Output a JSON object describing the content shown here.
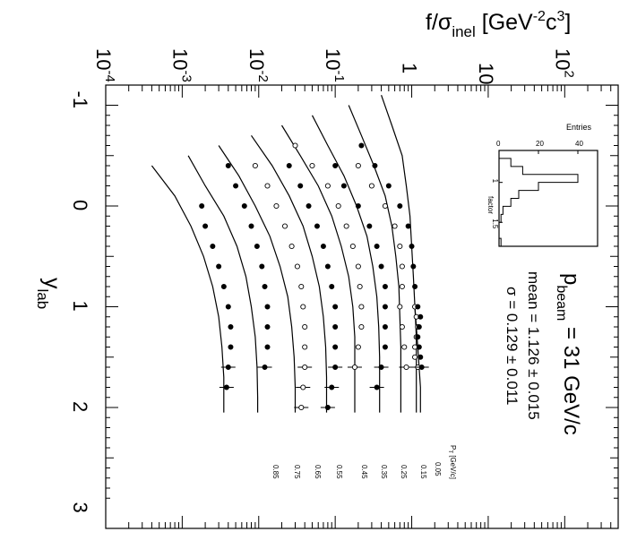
{
  "chart_data": {
    "type": "scatter",
    "title": "",
    "ylabel": "f/σ",
    "ylabel_sub": "inel",
    "ylabel_unit_pre": " [GeV",
    "ylabel_unit_sup1": "-2",
    "ylabel_unit_mid": "c",
    "ylabel_unit_sup2": "3",
    "ylabel_unit_post": "]",
    "xlabel": "y",
    "xlabel_sub": "lab",
    "xlim": [
      -1.2,
      3.2
    ],
    "ylim": [
      0.0001,
      500
    ],
    "yscale": "log",
    "x_ticks": [
      "-1",
      "0",
      "1",
      "2",
      "3"
    ],
    "y_ticks": [
      {
        "base": "10",
        "exp": "-4"
      },
      {
        "base": "10",
        "exp": "-3"
      },
      {
        "base": "10",
        "exp": "-2"
      },
      {
        "base": "10",
        "exp": "-1"
      },
      {
        "base": "1",
        "exp": ""
      },
      {
        "base": "10",
        "exp": ""
      },
      {
        "base": "10",
        "exp": "2"
      }
    ],
    "beam_label": "p",
    "beam_label_sub": "beam",
    "beam_value": " =  31 GeV/c",
    "mean_text": "mean = 1.126 ± 0.015",
    "sigma_text": "σ = 0.129 ± 0.011",
    "pt_header": "P",
    "pt_header_sub": "T",
    "pt_header_unit": " [GeV/c]",
    "series": [
      {
        "name": "0.05",
        "marker": "open",
        "x": [
          1.0,
          1.1,
          1.2,
          1.3,
          1.4,
          1.5,
          1.6
        ],
        "y": [
          1.1,
          1.15,
          1.2,
          1.15,
          1.1,
          1.1,
          1.2
        ]
      },
      {
        "name": "0.15",
        "marker": "filled",
        "x": [
          -0.6,
          -0.4,
          -0.2,
          0.0,
          0.2,
          0.4,
          0.6,
          0.8,
          1.0,
          1.1,
          1.2,
          1.3,
          1.4,
          1.5,
          1.6
        ],
        "y": [
          0.22,
          0.33,
          0.5,
          0.7,
          0.9,
          1.0,
          1.05,
          1.1,
          1.2,
          1.3,
          1.25,
          1.2,
          1.25,
          1.3,
          1.35
        ]
      },
      {
        "name": "0.25",
        "marker": "open",
        "x": [
          -0.4,
          -0.2,
          0.0,
          0.2,
          0.4,
          0.6,
          0.8,
          1.0,
          1.2,
          1.4,
          1.6
        ],
        "y": [
          0.2,
          0.3,
          0.45,
          0.6,
          0.7,
          0.75,
          0.75,
          0.7,
          0.75,
          0.8,
          0.85
        ]
      },
      {
        "name": "0.35",
        "marker": "filled",
        "x": [
          -0.4,
          -0.2,
          0.0,
          0.2,
          0.4,
          0.6,
          0.8,
          1.0,
          1.2,
          1.4,
          1.6,
          1.8
        ],
        "y": [
          0.1,
          0.13,
          0.2,
          0.28,
          0.35,
          0.4,
          0.45,
          0.45,
          0.45,
          0.45,
          0.4,
          0.35
        ]
      },
      {
        "name": "0.45",
        "marker": "open",
        "x": [
          -0.6,
          -0.4,
          -0.2,
          0.0,
          0.2,
          0.4,
          0.6,
          0.8,
          1.0,
          1.2,
          1.4,
          1.6
        ],
        "y": [
          0.03,
          0.05,
          0.08,
          0.11,
          0.14,
          0.17,
          0.2,
          0.21,
          0.22,
          0.22,
          0.2,
          0.18
        ]
      },
      {
        "name": "0.55",
        "marker": "filled",
        "x": [
          -0.4,
          -0.2,
          0.0,
          0.2,
          0.4,
          0.6,
          0.8,
          1.0,
          1.2,
          1.4,
          1.6,
          1.8,
          2.0
        ],
        "y": [
          0.025,
          0.035,
          0.045,
          0.058,
          0.07,
          0.08,
          0.09,
          0.1,
          0.1,
          0.1,
          0.1,
          0.09,
          0.08
        ]
      },
      {
        "name": "0.65",
        "marker": "open",
        "x": [
          -0.4,
          -0.2,
          0.0,
          0.2,
          0.4,
          0.6,
          0.8,
          1.0,
          1.2,
          1.4,
          1.6,
          1.8,
          2.0
        ],
        "y": [
          0.009,
          0.013,
          0.017,
          0.022,
          0.027,
          0.032,
          0.036,
          0.038,
          0.04,
          0.04,
          0.04,
          0.038,
          0.036
        ]
      },
      {
        "name": "0.75",
        "marker": "filled",
        "x": [
          -0.4,
          -0.2,
          0.0,
          0.2,
          0.4,
          0.6,
          0.8,
          1.0,
          1.2,
          1.4,
          1.6
        ],
        "y": [
          0.004,
          0.005,
          0.0065,
          0.008,
          0.0095,
          0.011,
          0.012,
          0.013,
          0.013,
          0.013,
          0.012
        ]
      },
      {
        "name": "0.85",
        "marker": "filled",
        "x": [
          0.0,
          0.2,
          0.4,
          0.6,
          0.8,
          1.0,
          1.2,
          1.4,
          1.6,
          1.8
        ],
        "y": [
          0.0018,
          0.002,
          0.0025,
          0.003,
          0.0035,
          0.004,
          0.0043,
          0.0043,
          0.004,
          0.0038
        ]
      }
    ],
    "curves": [
      {
        "x": [
          1.0,
          1.2,
          1.4,
          1.6,
          1.8,
          2.05
        ],
        "y": [
          1.1,
          1.15,
          1.2,
          1.25,
          1.3,
          1.3
        ]
      },
      {
        "x": [
          -1.1,
          -0.8,
          -0.5,
          -0.2,
          0.1,
          0.4,
          0.7,
          1.0,
          1.3,
          1.6,
          1.8,
          2.05
        ],
        "y": [
          0.4,
          0.55,
          0.75,
          0.85,
          0.95,
          1.0,
          1.05,
          1.1,
          1.15,
          1.15,
          1.15,
          1.15
        ]
      },
      {
        "x": [
          -1.0,
          -0.7,
          -0.4,
          -0.1,
          0.2,
          0.5,
          0.8,
          1.1,
          1.4,
          1.7,
          2.05
        ],
        "y": [
          0.15,
          0.22,
          0.32,
          0.45,
          0.55,
          0.62,
          0.68,
          0.7,
          0.72,
          0.72,
          0.72
        ]
      },
      {
        "x": [
          -0.9,
          -0.6,
          -0.3,
          0.0,
          0.3,
          0.6,
          0.9,
          1.2,
          1.5,
          1.8,
          2.05
        ],
        "y": [
          0.05,
          0.08,
          0.13,
          0.19,
          0.26,
          0.31,
          0.35,
          0.37,
          0.38,
          0.38,
          0.38
        ]
      },
      {
        "x": [
          -0.8,
          -0.5,
          -0.2,
          0.1,
          0.4,
          0.7,
          1.0,
          1.3,
          1.6,
          1.9,
          2.05
        ],
        "y": [
          0.02,
          0.035,
          0.06,
          0.09,
          0.12,
          0.15,
          0.17,
          0.18,
          0.18,
          0.18,
          0.18
        ]
      },
      {
        "x": [
          -0.7,
          -0.4,
          -0.1,
          0.2,
          0.5,
          0.8,
          1.1,
          1.4,
          1.7,
          2.05
        ],
        "y": [
          0.008,
          0.015,
          0.025,
          0.038,
          0.05,
          0.062,
          0.07,
          0.075,
          0.077,
          0.077
        ]
      },
      {
        "x": [
          -0.6,
          -0.3,
          0.0,
          0.3,
          0.6,
          0.9,
          1.2,
          1.5,
          1.8,
          2.05
        ],
        "y": [
          0.003,
          0.0055,
          0.009,
          0.014,
          0.019,
          0.024,
          0.027,
          0.029,
          0.03,
          0.03
        ]
      },
      {
        "x": [
          -0.5,
          -0.2,
          0.1,
          0.4,
          0.7,
          1.0,
          1.3,
          1.6,
          1.9,
          2.05
        ],
        "y": [
          0.0012,
          0.002,
          0.0035,
          0.0052,
          0.0068,
          0.008,
          0.009,
          0.0095,
          0.0097,
          0.0097
        ]
      },
      {
        "x": [
          -0.4,
          -0.1,
          0.2,
          0.5,
          0.8,
          1.1,
          1.4,
          1.7,
          2.05
        ],
        "y": [
          0.0004,
          0.0008,
          0.0013,
          0.0019,
          0.0025,
          0.003,
          0.0033,
          0.0035,
          0.0035
        ]
      }
    ],
    "pt_labels": [
      "0.05",
      "0.15",
      "0.25",
      "0.35",
      "0.45",
      "0.55",
      "0.65",
      "0.75",
      "0.85"
    ],
    "inset": {
      "type": "histogram",
      "title": "Entries",
      "xlabel": "factor",
      "entries_ticks": [
        "0",
        "20",
        "40"
      ],
      "factor_ticks": [
        "1",
        "1.5"
      ],
      "bins_factor": [
        0.65,
        0.75,
        0.85,
        0.95,
        1.05,
        1.15,
        1.25,
        1.35,
        1.45,
        1.55,
        1.65,
        1.75
      ],
      "bins_entries": [
        0,
        6,
        12,
        40,
        20,
        10,
        6,
        2,
        1,
        0,
        0,
        1
      ]
    }
  }
}
